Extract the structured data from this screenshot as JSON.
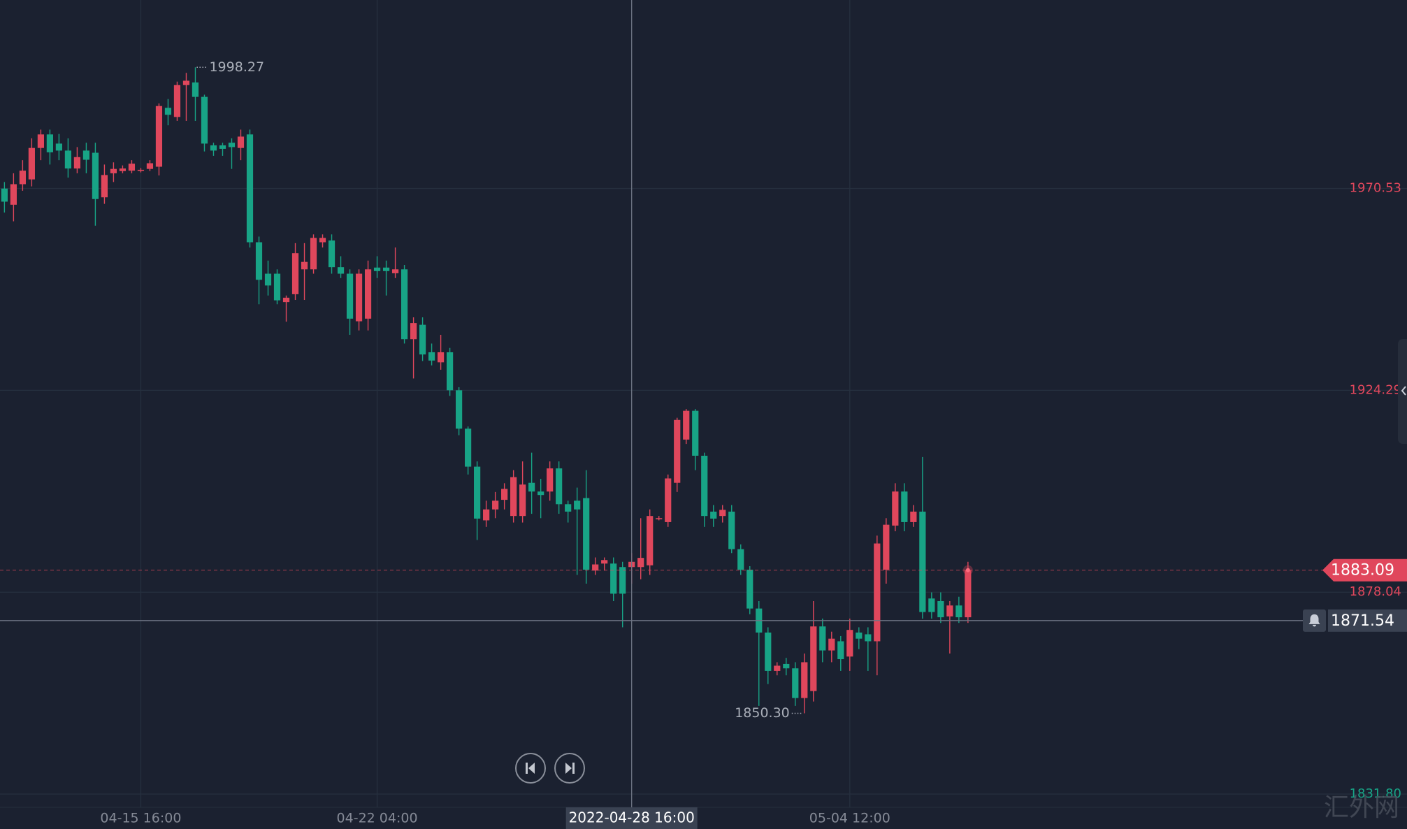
{
  "chart_data": {
    "type": "candlestick",
    "up_color": "#e0475c",
    "down_color": "#18a486",
    "grid": true,
    "xlim": [
      -0.49,
      154.3
    ],
    "ylim": [
      1823.8,
      2013.69
    ],
    "yticks": [
      1970.53,
      1924.29,
      1878.04,
      {
        "value": 1831.8,
        "label": "1831.80"
      }
    ],
    "xticks": [
      {
        "value": 15,
        "label": "04-15 16:00"
      },
      {
        "value": 41,
        "label": "04-22 04:00"
      },
      {
        "value": 93,
        "label": "05-04 12:00"
      }
    ],
    "open": [
      1970.5,
      1966.8,
      1971.5,
      1972.6,
      1979.8,
      1982.9,
      1980.8,
      1979.2,
      1975.1,
      1979.2,
      1978.7,
      1968.5,
      1974,
      1974.5,
      1974.6,
      1974.6,
      1975,
      1975.5,
      1989,
      1986.9,
      1994.2,
      1994.8,
      1991.5,
      1980.4,
      1980.4,
      1981,
      1979.8,
      1982.9,
      1958.2,
      1951,
      1951,
      1944.5,
      1946.3,
      1952,
      1952,
      1958.2,
      1958.6,
      1952.5,
      1951,
      1940.1,
      1940.7,
      1952.4,
      1952.4,
      1951.1,
      1952,
      1936,
      1939.3,
      1933,
      1930.7,
      1933,
      1924.3,
      1915.5,
      1906.8,
      1894.5,
      1897,
      1899.2,
      1895.5,
      1895.5,
      1903.1,
      1901.1,
      1901.1,
      1906.4,
      1898.2,
      1899,
      1899.6,
      1883,
      1884.6,
      1884.6,
      1883.8,
      1883.8,
      1883.8,
      1884.2,
      1894.9,
      1894.1,
      1903.1,
      1913,
      1919.6,
      1909.3,
      1896.5,
      1895.5,
      1896.5,
      1887.9,
      1883.2,
      1874.3,
      1868.8,
      1860,
      1861.6,
      1860.6,
      1853.8,
      1855.4,
      1870.2,
      1864.7,
      1866.8,
      1863.3,
      1868.8,
      1868.4,
      1866.8,
      1883.2,
      1893.3,
      1901.1,
      1894.1,
      1896.5,
      1876.6,
      1876,
      1872.5,
      1875,
      1872.3
    ],
    "high": [
      1972,
      1974,
      1977,
      1982,
      1984,
      1984,
      1983,
      1982,
      1980,
      1981,
      1981,
      1976,
      1976.5,
      1975.8,
      1977,
      1975.2,
      1977,
      1990,
      1991,
      1995,
      1997,
      1998.27,
      1992,
      1981,
      1981,
      1982,
      1984,
      1984,
      1959.5,
      1954,
      1952,
      1946,
      1958,
      1958,
      1960,
      1960,
      1960,
      1955,
      1952,
      1952,
      1954,
      1955,
      1954,
      1957,
      1953,
      1941,
      1941,
      1935,
      1937,
      1934,
      1925,
      1916,
      1908,
      1899,
      1901,
      1903,
      1906,
      1908,
      1910,
      1904,
      1908,
      1908,
      1899,
      1902,
      1906,
      1886,
      1886,
      1886,
      1885,
      1887,
      1895,
      1897,
      1895.5,
      1905,
      1918,
      1920,
      1920,
      1910,
      1898,
      1898,
      1898,
      1889,
      1884,
      1876,
      1870,
      1862,
      1863,
      1862,
      1864,
      1876,
      1872,
      1869,
      1868,
      1872,
      1870,
      1870,
      1891,
      1895,
      1903,
      1903,
      1898,
      1909,
      1878,
      1878,
      1876,
      1877,
      1885
    ],
    "low": [
      1965,
      1963,
      1970,
      1971,
      1977,
      1976,
      1977,
      1973,
      1974,
      1974,
      1962,
      1967,
      1972,
      1974,
      1974,
      1974.2,
      1974.5,
      1973.5,
      1985,
      1986,
      1986,
      1986,
      1979,
      1978,
      1978,
      1975,
      1977,
      1957,
      1944,
      1946,
      1944,
      1940,
      1945,
      1945,
      1951,
      1957,
      1951,
      1950,
      1937,
      1938,
      1938,
      1950,
      1946,
      1950,
      1935,
      1927,
      1931,
      1930,
      1929,
      1923,
      1914,
      1905,
      1890,
      1893,
      1895,
      1897,
      1894,
      1894,
      1896,
      1895,
      1899,
      1896,
      1894,
      1882,
      1880,
      1882,
      1883,
      1876,
      1870,
      1880,
      1881,
      1882,
      1894.5,
      1893,
      1901,
      1912,
      1906,
      1893,
      1893,
      1894,
      1887,
      1882,
      1873,
      1852,
      1857,
      1859,
      1859,
      1852,
      1850.3,
      1853,
      1862,
      1862,
      1860,
      1860,
      1865,
      1860,
      1859,
      1880,
      1892,
      1892,
      1893,
      1872,
      1872,
      1871,
      1864,
      1871,
      1871
    ],
    "close": [
      1967.5,
      1971.5,
      1974.6,
      1979.8,
      1982.9,
      1978.8,
      1979.2,
      1975.1,
      1977.7,
      1977.1,
      1968.1,
      1973.6,
      1975,
      1975.1,
      1976.2,
      1974.8,
      1976.3,
      1989.4,
      1987.4,
      1994.2,
      1995.2,
      1991.5,
      1980.8,
      1979.2,
      1979.6,
      1980,
      1982.4,
      1958.2,
      1949.6,
      1948.3,
      1944.9,
      1945.5,
      1955.7,
      1953.7,
      1959.2,
      1959.2,
      1952.5,
      1951,
      1940.7,
      1951,
      1952,
      1951.6,
      1951.6,
      1952,
      1936,
      1939.7,
      1932.5,
      1931.1,
      1933,
      1924.3,
      1915.5,
      1906.8,
      1894.9,
      1897,
      1899,
      1901.7,
      1904.4,
      1902.7,
      1901.1,
      1900.3,
      1906.4,
      1898.2,
      1896.5,
      1897,
      1883.2,
      1884.4,
      1885.4,
      1877.7,
      1877.7,
      1885,
      1885.9,
      1895.5,
      1895,
      1904.1,
      1917.5,
      1919.6,
      1909.3,
      1895.5,
      1894.9,
      1896.9,
      1887.9,
      1883.2,
      1874.3,
      1868.8,
      1860,
      1861.2,
      1860.6,
      1853.8,
      1862,
      1870.2,
      1864.7,
      1867.4,
      1862.7,
      1869.4,
      1867.4,
      1866.8,
      1889.2,
      1893.5,
      1901.1,
      1894.1,
      1896.5,
      1873.5,
      1873.5,
      1872.3,
      1875,
      1872.3,
      1883.09
    ],
    "annotations": [
      {
        "index": 21,
        "value": 1998.27,
        "label": "1998.27"
      },
      {
        "index": 88,
        "value": 1850.3,
        "label": "1850.30"
      }
    ],
    "crosshair": {
      "index": 69,
      "price": 1871.54,
      "x_label": "2022-04-28 16:00"
    },
    "watermark": "汇外网"
  }
}
